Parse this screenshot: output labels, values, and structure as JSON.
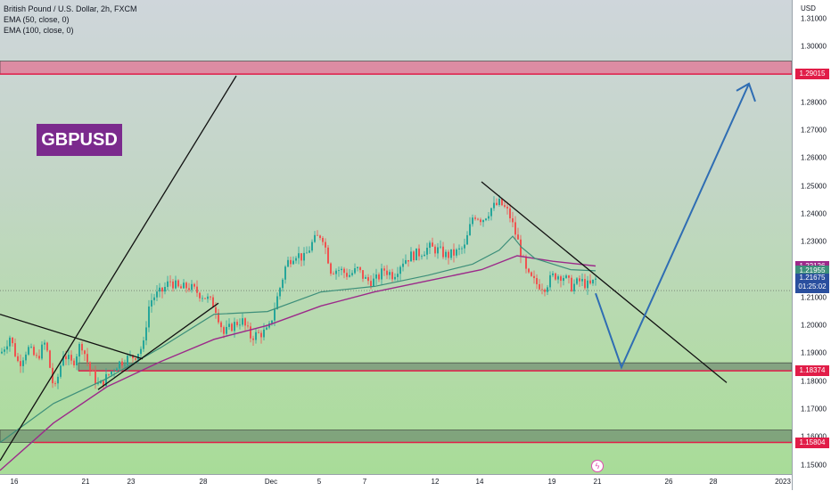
{
  "chart_header": {
    "title": "British Pound / U.S. Dollar, 2h, FXCM",
    "indicator_1": "EMA (50, close, 0)",
    "indicator_2": "EMA (100, close, 0)"
  },
  "symbol_label": "GBPUSD",
  "colors": {
    "up_candle": "#26a69a",
    "down_candle": "#ef5350",
    "ema50": "#3d8f7a",
    "ema100": "#9c2a8a",
    "resistance_zone": "#e07f9a",
    "level_line": "#e11d48",
    "support_zone": "#4b5f54",
    "projection_arrow": "#2f6db3",
    "trendline": "#111111"
  },
  "price_axis": {
    "currency": "USD",
    "ticks": [
      "1.31000",
      "1.30000",
      "1.29000",
      "1.28000",
      "1.27000",
      "1.26000",
      "1.25000",
      "1.24000",
      "1.23000",
      "1.22000",
      "1.21000",
      "1.20000",
      "1.19000",
      "1.18000",
      "1.17000",
      "1.16000",
      "1.15000"
    ],
    "tick_values": [
      1.31,
      1.3,
      1.29,
      1.28,
      1.27,
      1.26,
      1.25,
      1.24,
      1.23,
      1.22,
      1.21,
      1.2,
      1.19,
      1.18,
      1.17,
      1.16,
      1.15
    ],
    "range": [
      1.1467,
      1.3167
    ]
  },
  "time_axis": {
    "ticks": [
      "16",
      "21",
      "23",
      "28",
      "Dec",
      "5",
      "7",
      "12",
      "14",
      "19",
      "21",
      "26",
      "28",
      "2023"
    ]
  },
  "price_badges": [
    {
      "label": "1.29015",
      "value": 1.29015,
      "color": "#e11d48"
    },
    {
      "label": "1.22126",
      "value": 1.22126,
      "color": "#9c2a8a"
    },
    {
      "label": "1.21955",
      "value": 1.21955,
      "color": "#3d8f7a"
    },
    {
      "label": "1.21675",
      "value": 1.21675,
      "color": "#2a4f9e",
      "countdown": "01:25:02"
    },
    {
      "label": "1.18374",
      "value": 1.18374,
      "color": "#e11d48"
    },
    {
      "label": "1.15804",
      "value": 1.15804,
      "color": "#e11d48"
    }
  ],
  "chart_data": {
    "type": "candlestick",
    "title": "British Pound / U.S. Dollar, 2h, FXCM",
    "ylabel": "USD",
    "ylim": [
      1.1467,
      1.3167
    ],
    "x_ticks": [
      "16",
      "21",
      "23",
      "28",
      "Dec",
      "5",
      "7",
      "12",
      "14",
      "19",
      "21",
      "26",
      "28",
      "2023"
    ],
    "price_path": [
      [
        0,
        1.19
      ],
      [
        10,
        1.196
      ],
      [
        20,
        1.186
      ],
      [
        30,
        1.192
      ],
      [
        40,
        1.188
      ],
      [
        50,
        1.194
      ],
      [
        60,
        1.176
      ],
      [
        70,
        1.19
      ],
      [
        80,
        1.186
      ],
      [
        90,
        1.194
      ],
      [
        100,
        1.184
      ],
      [
        110,
        1.178
      ],
      [
        120,
        1.182
      ],
      [
        130,
        1.186
      ],
      [
        140,
        1.188
      ],
      [
        150,
        1.189
      ],
      [
        160,
        1.193
      ],
      [
        165,
        1.206
      ],
      [
        170,
        1.21
      ],
      [
        180,
        1.212
      ],
      [
        190,
        1.216
      ],
      [
        200,
        1.213
      ],
      [
        210,
        1.214
      ],
      [
        220,
        1.212
      ],
      [
        230,
        1.21
      ],
      [
        240,
        1.207
      ],
      [
        250,
        1.197
      ],
      [
        260,
        1.2
      ],
      [
        270,
        1.202
      ],
      [
        280,
        1.196
      ],
      [
        290,
        1.197
      ],
      [
        300,
        1.198
      ],
      [
        310,
        1.21
      ],
      [
        320,
        1.222
      ],
      [
        330,
        1.226
      ],
      [
        340,
        1.224
      ],
      [
        350,
        1.23
      ],
      [
        360,
        1.233
      ],
      [
        370,
        1.22
      ],
      [
        380,
        1.22
      ],
      [
        390,
        1.218
      ],
      [
        400,
        1.22
      ],
      [
        410,
        1.216
      ],
      [
        420,
        1.216
      ],
      [
        430,
        1.22
      ],
      [
        440,
        1.218
      ],
      [
        450,
        1.223
      ],
      [
        460,
        1.225
      ],
      [
        470,
        1.226
      ],
      [
        480,
        1.228
      ],
      [
        490,
        1.227
      ],
      [
        500,
        1.225
      ],
      [
        510,
        1.226
      ],
      [
        520,
        1.228
      ],
      [
        530,
        1.24
      ],
      [
        540,
        1.238
      ],
      [
        550,
        1.242
      ],
      [
        560,
        1.244
      ],
      [
        570,
        1.24
      ],
      [
        580,
        1.23
      ],
      [
        585,
        1.224
      ],
      [
        590,
        1.218
      ],
      [
        600,
        1.215
      ],
      [
        610,
        1.214
      ],
      [
        620,
        1.218
      ],
      [
        630,
        1.218
      ],
      [
        640,
        1.214
      ],
      [
        650,
        1.216
      ],
      [
        660,
        1.214
      ],
      [
        668,
        1.2168
      ]
    ],
    "ema50": [
      [
        0,
        1.158
      ],
      [
        60,
        1.172
      ],
      [
        120,
        1.181
      ],
      [
        180,
        1.192
      ],
      [
        240,
        1.204
      ],
      [
        300,
        1.205
      ],
      [
        360,
        1.212
      ],
      [
        420,
        1.214
      ],
      [
        480,
        1.218
      ],
      [
        530,
        1.222
      ],
      [
        560,
        1.227
      ],
      [
        575,
        1.232
      ],
      [
        585,
        1.228
      ],
      [
        600,
        1.224
      ],
      [
        640,
        1.22
      ],
      [
        668,
        1.2196
      ]
    ],
    "ema100": [
      [
        0,
        1.148
      ],
      [
        60,
        1.165
      ],
      [
        120,
        1.178
      ],
      [
        180,
        1.187
      ],
      [
        240,
        1.195
      ],
      [
        300,
        1.2
      ],
      [
        360,
        1.207
      ],
      [
        420,
        1.212
      ],
      [
        480,
        1.216
      ],
      [
        540,
        1.22
      ],
      [
        580,
        1.225
      ],
      [
        620,
        1.223
      ],
      [
        668,
        1.2213
      ]
    ],
    "levels": [
      {
        "name": "resistance",
        "price": 1.29015,
        "zone": [
          1.2901,
          1.2948
        ]
      },
      {
        "name": "support",
        "price": 1.18374,
        "zone": [
          1.18374,
          1.1866
        ]
      },
      {
        "name": "lower support",
        "price": 1.15804,
        "zone": [
          1.15804,
          1.1625
        ]
      }
    ],
    "projection": [
      [
        668,
        1.2115
      ],
      [
        697,
        1.185
      ],
      [
        840,
        1.2867
      ]
    ],
    "trendlines": [
      [
        [
          0,
          1.1515
        ],
        [
          265,
          1.2895
        ]
      ],
      [
        [
          0,
          1.204
        ],
        [
          160,
          1.188
        ]
      ],
      [
        [
          110,
          1.177
        ],
        [
          245,
          1.208
        ]
      ],
      [
        [
          540,
          1.2515
        ],
        [
          815,
          1.1795
        ]
      ]
    ],
    "current_price": 1.21675
  }
}
